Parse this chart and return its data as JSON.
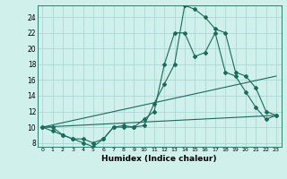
{
  "xlabel": "Humidex (Indice chaleur)",
  "bg_color": "#cff0eb",
  "grid_color": "#aad8d3",
  "line_color": "#1a6b5a",
  "xlim": [
    -0.5,
    23.5
  ],
  "ylim": [
    7.5,
    25.5
  ],
  "xticks": [
    0,
    1,
    2,
    3,
    4,
    5,
    6,
    7,
    8,
    9,
    10,
    11,
    12,
    13,
    14,
    15,
    16,
    17,
    18,
    19,
    20,
    21,
    22,
    23
  ],
  "yticks": [
    8,
    10,
    12,
    14,
    16,
    18,
    20,
    22,
    24
  ],
  "curve1_x": [
    0,
    1,
    2,
    3,
    4,
    5,
    6,
    7,
    8,
    9,
    10,
    11,
    12,
    13,
    14,
    15,
    16,
    17,
    18,
    19,
    20,
    21,
    22,
    23
  ],
  "curve1_y": [
    10,
    10,
    9,
    8.5,
    8,
    7.5,
    8.5,
    10,
    10.2,
    10,
    11,
    12,
    18,
    22,
    22,
    19,
    19.5,
    22,
    17,
    16.5,
    14.5,
    12.5,
    11,
    11.5
  ],
  "curve2_x": [
    0,
    1,
    2,
    3,
    4,
    5,
    6,
    7,
    8,
    9,
    10,
    11,
    12,
    13,
    14,
    15,
    16,
    17,
    18,
    19,
    20,
    21,
    22,
    23
  ],
  "curve2_y": [
    10,
    9.5,
    9,
    8.5,
    8.5,
    8,
    8.5,
    10,
    10,
    10,
    10.2,
    13,
    15.5,
    18,
    25.5,
    25,
    24,
    22.5,
    22,
    17,
    16.5,
    15,
    12,
    11.5
  ],
  "line3_x": [
    0,
    23
  ],
  "line3_y": [
    10,
    16.5
  ],
  "line4_x": [
    0,
    23
  ],
  "line4_y": [
    10,
    11.5
  ]
}
